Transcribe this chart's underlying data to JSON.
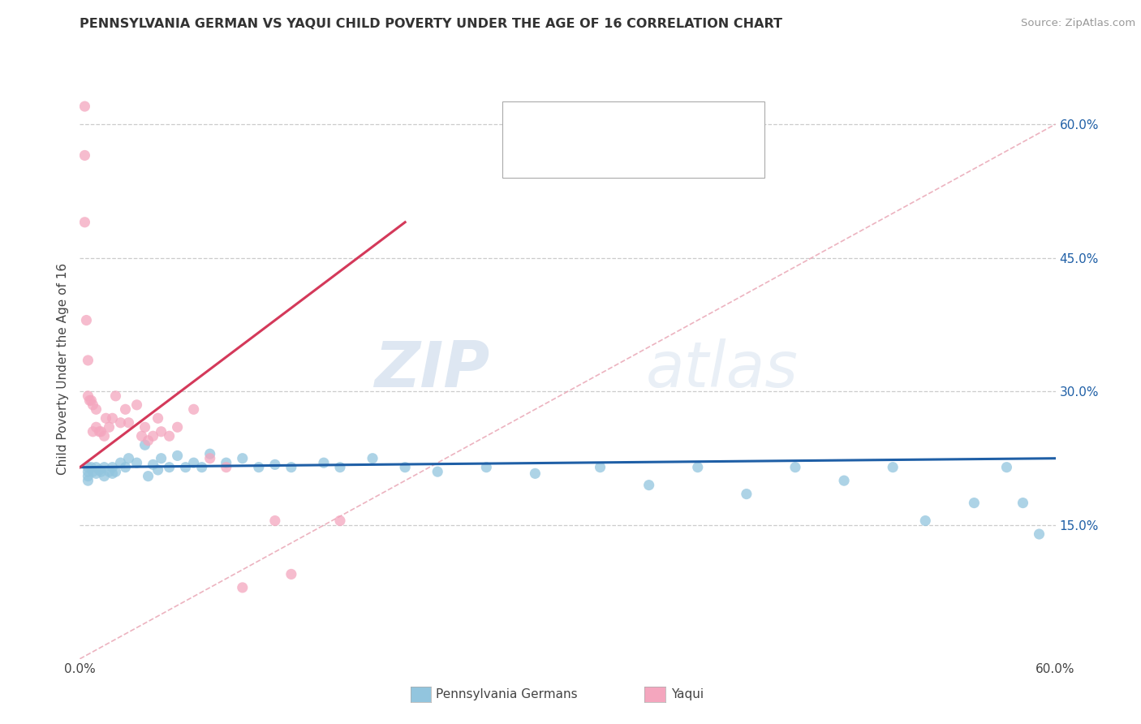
{
  "title": "PENNSYLVANIA GERMAN VS YAQUI CHILD POVERTY UNDER THE AGE OF 16 CORRELATION CHART",
  "source": "Source: ZipAtlas.com",
  "ylabel": "Child Poverty Under the Age of 16",
  "xlim": [
    0.0,
    0.6
  ],
  "ylim": [
    0.0,
    0.65
  ],
  "x_tick_labels": [
    "0.0%",
    "60.0%"
  ],
  "y_tick_labels": [
    "15.0%",
    "30.0%",
    "45.0%",
    "60.0%"
  ],
  "y_ticks": [
    0.15,
    0.3,
    0.45,
    0.6
  ],
  "watermark_zip": "ZIP",
  "watermark_atlas": "atlas",
  "color_pennsylvania": "#92c5de",
  "color_yaqui": "#f4a6be",
  "color_trendline_pennsylvania": "#1f5fa6",
  "color_trendline_yaqui": "#d4395a",
  "color_diagonal": "#e8a0b0",
  "pa_x": [
    0.005,
    0.005,
    0.005,
    0.005,
    0.007,
    0.008,
    0.01,
    0.01,
    0.012,
    0.013,
    0.015,
    0.015,
    0.018,
    0.02,
    0.02,
    0.022,
    0.025,
    0.028,
    0.03,
    0.035,
    0.04,
    0.042,
    0.045,
    0.048,
    0.05,
    0.055,
    0.06,
    0.065,
    0.07,
    0.075,
    0.08,
    0.09,
    0.1,
    0.11,
    0.12,
    0.13,
    0.15,
    0.16,
    0.18,
    0.2,
    0.22,
    0.25,
    0.28,
    0.32,
    0.35,
    0.38,
    0.41,
    0.44,
    0.47,
    0.5,
    0.52,
    0.55,
    0.57,
    0.58,
    0.59
  ],
  "pa_y": [
    0.215,
    0.21,
    0.205,
    0.2,
    0.215,
    0.21,
    0.215,
    0.208,
    0.212,
    0.21,
    0.215,
    0.205,
    0.21,
    0.215,
    0.208,
    0.21,
    0.22,
    0.215,
    0.225,
    0.22,
    0.24,
    0.205,
    0.218,
    0.212,
    0.225,
    0.215,
    0.228,
    0.215,
    0.22,
    0.215,
    0.23,
    0.22,
    0.225,
    0.215,
    0.218,
    0.215,
    0.22,
    0.215,
    0.225,
    0.215,
    0.21,
    0.215,
    0.208,
    0.215,
    0.195,
    0.215,
    0.185,
    0.215,
    0.2,
    0.215,
    0.155,
    0.175,
    0.215,
    0.175,
    0.14
  ],
  "yq_x": [
    0.003,
    0.003,
    0.003,
    0.004,
    0.005,
    0.005,
    0.006,
    0.007,
    0.008,
    0.008,
    0.01,
    0.01,
    0.012,
    0.013,
    0.015,
    0.016,
    0.018,
    0.02,
    0.022,
    0.025,
    0.028,
    0.03,
    0.035,
    0.038,
    0.04,
    0.042,
    0.045,
    0.048,
    0.05,
    0.055,
    0.06,
    0.07,
    0.08,
    0.09,
    0.1,
    0.12,
    0.13,
    0.16
  ],
  "yq_y": [
    0.62,
    0.565,
    0.49,
    0.38,
    0.335,
    0.295,
    0.29,
    0.29,
    0.285,
    0.255,
    0.28,
    0.26,
    0.255,
    0.255,
    0.25,
    0.27,
    0.26,
    0.27,
    0.295,
    0.265,
    0.28,
    0.265,
    0.285,
    0.25,
    0.26,
    0.245,
    0.25,
    0.27,
    0.255,
    0.25,
    0.26,
    0.28,
    0.225,
    0.215,
    0.08,
    0.155,
    0.095,
    0.155
  ],
  "pa_trend_x": [
    0.0,
    0.6
  ],
  "pa_trend_y": [
    0.215,
    0.225
  ],
  "yq_trend_x": [
    0.0,
    0.2
  ],
  "yq_trend_y": [
    0.215,
    0.49
  ]
}
